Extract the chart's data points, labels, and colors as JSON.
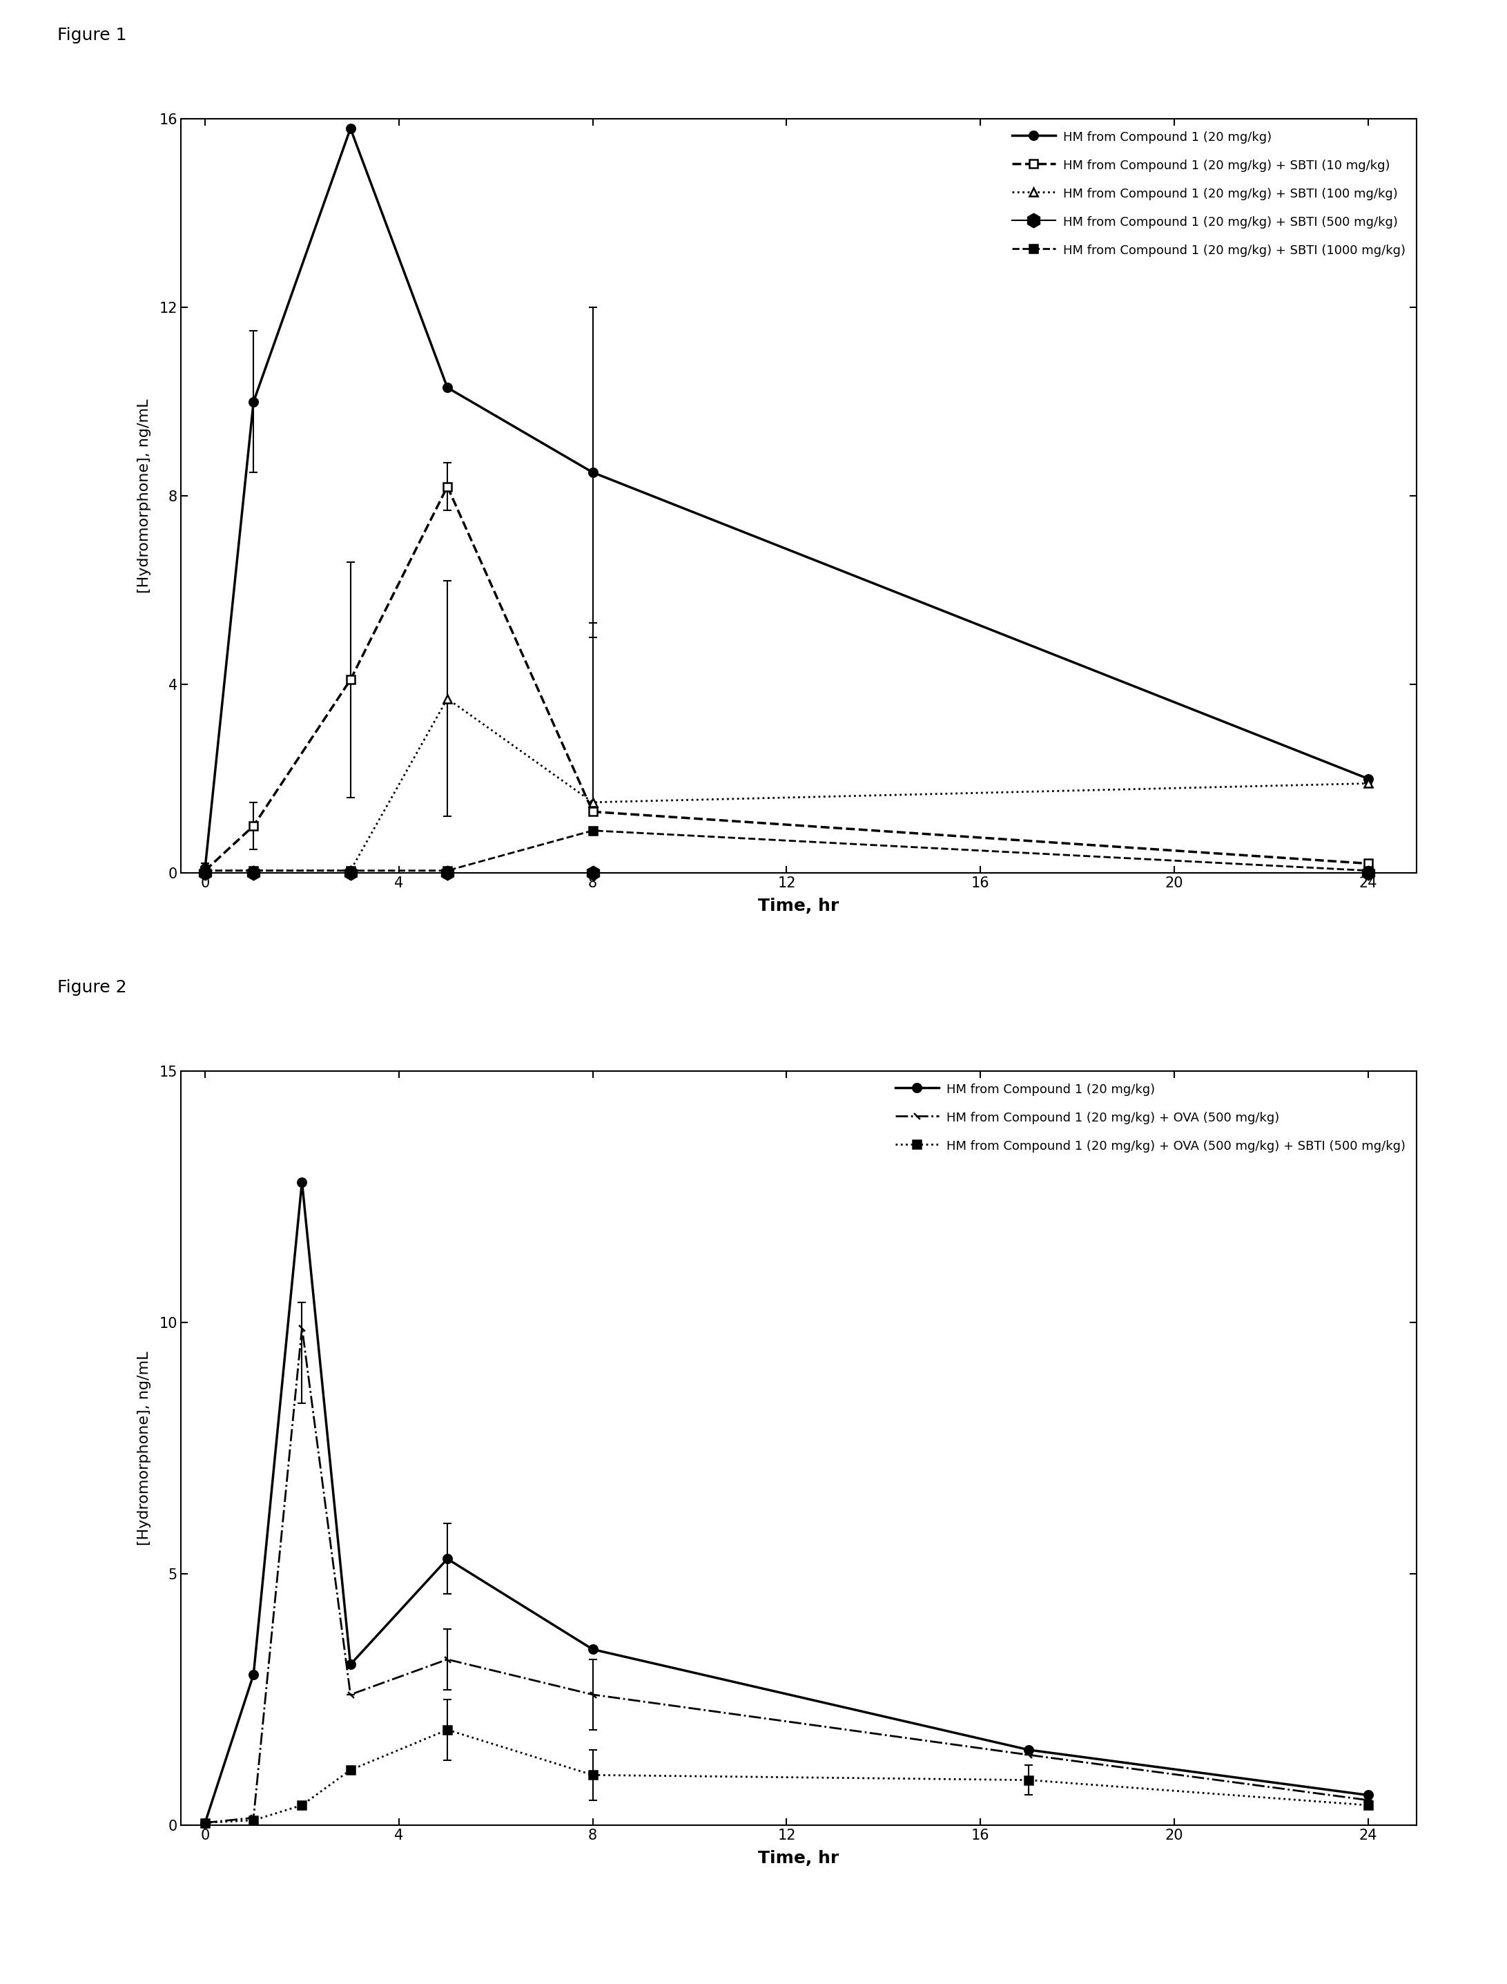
{
  "fig1": {
    "title": "Figure 1",
    "xlabel": "Time, hr",
    "ylabel": "[Hydromorphone], ng/mL",
    "xlim": [
      -0.5,
      25
    ],
    "ylim": [
      0,
      16
    ],
    "yticks": [
      0,
      4,
      8,
      12,
      16
    ],
    "xticks": [
      0,
      4,
      8,
      12,
      16,
      20,
      24
    ],
    "series": [
      {
        "label": "HM from Compound 1 (20 mg/kg)",
        "x": [
          0,
          1,
          3,
          5,
          8,
          24
        ],
        "y": [
          0.1,
          10.0,
          15.8,
          10.3,
          8.5,
          2.0
        ],
        "yerr_lo": [
          0.1,
          1.5,
          0,
          0,
          3.5,
          0
        ],
        "yerr_hi": [
          0.1,
          1.5,
          0,
          0,
          3.5,
          0
        ],
        "linestyle": "solid",
        "marker": "o",
        "markersize": 9,
        "linewidth": 2.5,
        "color": "#000000",
        "mfc": "#000000"
      },
      {
        "label": "HM from Compound 1 (20 mg/kg) + SBTI (10 mg/kg)",
        "x": [
          0,
          1,
          3,
          5,
          8,
          24
        ],
        "y": [
          0.05,
          1.0,
          4.1,
          8.2,
          1.3,
          0.2
        ],
        "yerr_lo": [
          0,
          0.5,
          2.5,
          0.5,
          0,
          0
        ],
        "yerr_hi": [
          0,
          0.5,
          2.5,
          0.5,
          4.0,
          0
        ],
        "linestyle": "dashed",
        "marker": "s",
        "markersize": 9,
        "linewidth": 2.5,
        "color": "#000000",
        "mfc": "#ffffff"
      },
      {
        "label": "HM from Compound 1 (20 mg/kg) + SBTI (100 mg/kg)",
        "x": [
          0,
          1,
          3,
          5,
          8,
          24
        ],
        "y": [
          0.05,
          0.05,
          0.05,
          3.7,
          1.5,
          1.9
        ],
        "yerr_lo": [
          0,
          0,
          0,
          2.5,
          0,
          0
        ],
        "yerr_hi": [
          0,
          0,
          0,
          2.5,
          0,
          0
        ],
        "linestyle": "dotted",
        "marker": "^",
        "markersize": 9,
        "linewidth": 2.0,
        "color": "#000000",
        "mfc": "#ffffff"
      },
      {
        "label": "HM from Compound 1 (20 mg/kg) + SBTI (500 mg/kg)",
        "x": [
          0,
          1,
          3,
          5,
          8,
          24
        ],
        "y": [
          0.0,
          0.0,
          0.0,
          0.0,
          0.0,
          0.0
        ],
        "yerr_lo": [
          0,
          0,
          0,
          0,
          0,
          0
        ],
        "yerr_hi": [
          0,
          0,
          0,
          0,
          0,
          0
        ],
        "linestyle": "solid",
        "marker": "*",
        "markersize": 14,
        "linewidth": 1.5,
        "color": "#000000",
        "mfc": "#000000"
      },
      {
        "label": "HM from Compound 1 (20 mg/kg) + SBTI (1000 mg/kg)",
        "x": [
          0,
          1,
          3,
          5,
          8,
          24
        ],
        "y": [
          0.05,
          0.05,
          0.05,
          0.05,
          0.9,
          0.05
        ],
        "yerr_lo": [
          0,
          0,
          0,
          0,
          0,
          0
        ],
        "yerr_hi": [
          0,
          0,
          0,
          0,
          0,
          0
        ],
        "linestyle": "dashed",
        "marker": "s",
        "markersize": 8,
        "linewidth": 2.0,
        "color": "#000000",
        "mfc": "#000000"
      }
    ]
  },
  "fig2": {
    "title": "Figure 2",
    "xlabel": "Time, hr",
    "ylabel": "[Hydromorphone], ng/mL",
    "xlim": [
      -0.5,
      25
    ],
    "ylim": [
      0,
      15
    ],
    "yticks": [
      0,
      5,
      10,
      15
    ],
    "xticks": [
      0,
      4,
      8,
      12,
      16,
      20,
      24
    ],
    "series": [
      {
        "label": "HM from Compound 1 (20 mg/kg)",
        "x": [
          0,
          1,
          2,
          3,
          5,
          8,
          17,
          24
        ],
        "y": [
          0.05,
          3.0,
          12.8,
          3.2,
          5.3,
          3.5,
          1.5,
          0.6
        ],
        "yerr_lo": [
          0,
          0,
          0,
          0,
          0.7,
          0,
          0,
          0
        ],
        "yerr_hi": [
          0,
          0,
          0,
          0,
          0.7,
          0,
          0,
          0
        ],
        "linestyle": "solid",
        "marker": "o",
        "markersize": 9,
        "linewidth": 2.5,
        "color": "#000000",
        "mfc": "#000000"
      },
      {
        "label": "HM from Compound 1 (20 mg/kg) + OVA (500 mg/kg)",
        "x": [
          0,
          1,
          2,
          3,
          5,
          8,
          17,
          24
        ],
        "y": [
          0.05,
          0.15,
          9.9,
          2.6,
          3.3,
          2.6,
          1.4,
          0.5
        ],
        "yerr_lo": [
          0,
          0,
          1.5,
          0,
          0.6,
          0.7,
          0,
          0
        ],
        "yerr_hi": [
          0,
          0,
          0.5,
          0,
          0.6,
          0.7,
          0,
          0
        ],
        "linestyle": "dashdot",
        "marker": "/",
        "markersize": 9,
        "linewidth": 2.0,
        "color": "#000000",
        "mfc": "#000000"
      },
      {
        "label": "HM from Compound 1 (20 mg/kg) + OVA (500 mg/kg) + SBTI (500 mg/kg)",
        "x": [
          0,
          1,
          2,
          3,
          5,
          8,
          17,
          24
        ],
        "y": [
          0.05,
          0.1,
          0.4,
          1.1,
          1.9,
          1.0,
          0.9,
          0.4
        ],
        "yerr_lo": [
          0,
          0,
          0,
          0,
          0.6,
          0.5,
          0.3,
          0
        ],
        "yerr_hi": [
          0,
          0,
          0,
          0,
          0.6,
          0.5,
          0.3,
          0
        ],
        "linestyle": "dotted",
        "marker": "s",
        "markersize": 8,
        "linewidth": 2.0,
        "color": "#000000",
        "mfc": "#000000"
      }
    ]
  }
}
